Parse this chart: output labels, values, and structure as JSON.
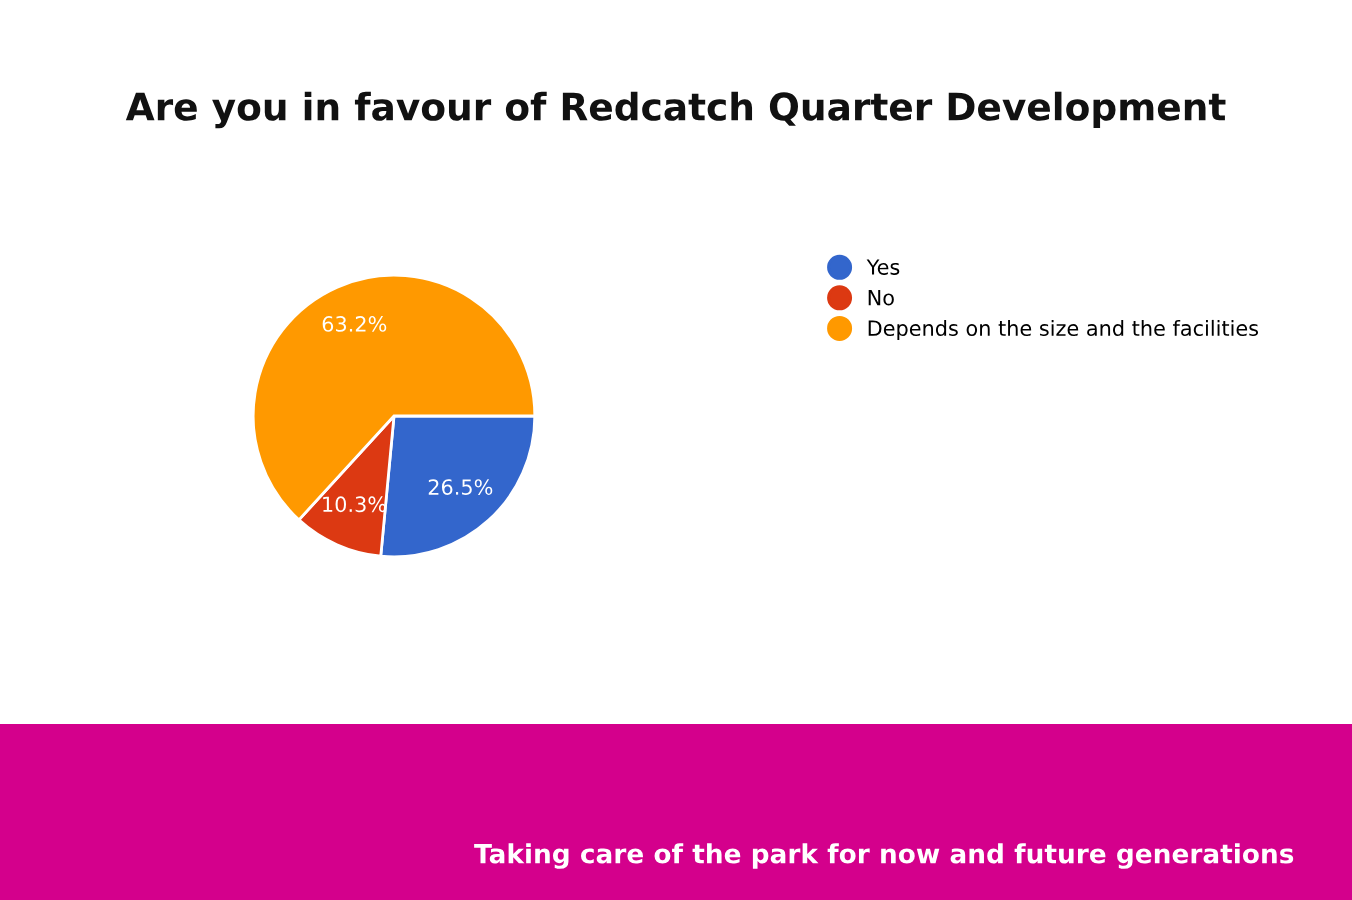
{
  "chart_data": {
    "type": "pie",
    "title": "Are you in favour of Redcatch Quarter Development",
    "categories": [
      "Yes",
      "No",
      "Depends on the size and the facilities"
    ],
    "values": [
      26.5,
      10.3,
      63.2
    ],
    "colors": [
      "#3366cc",
      "#dc3912",
      "#ff9900"
    ],
    "value_labels": [
      "26.5%",
      "10.3%",
      "63.2%"
    ],
    "legend": "right",
    "annotations": [
      "Taking care of the park for now and future generations"
    ]
  }
}
